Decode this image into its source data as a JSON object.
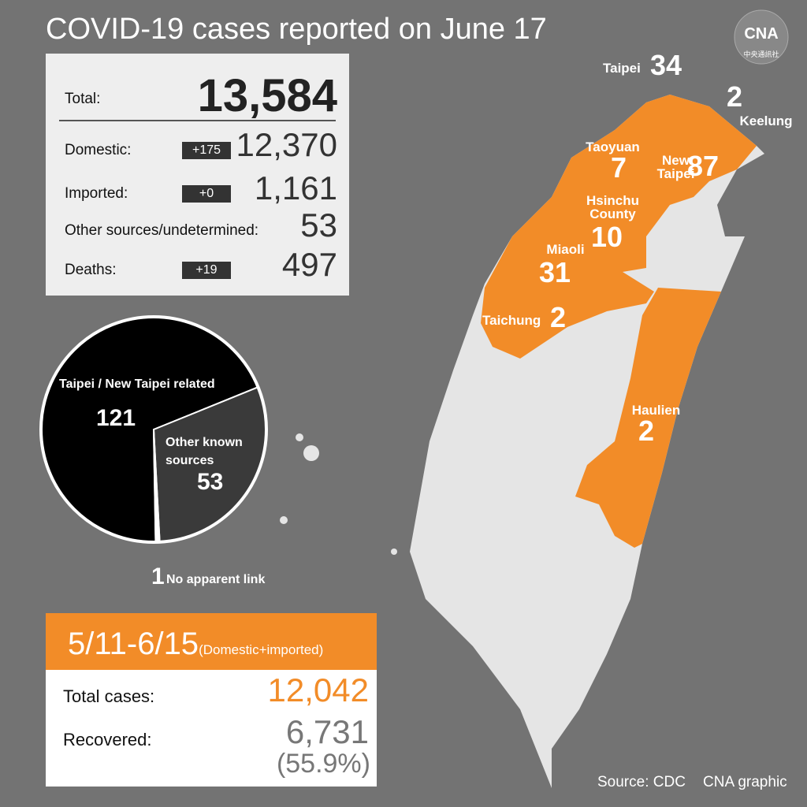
{
  "title": "COVID-19 cases reported on June 17",
  "logo": {
    "abbr": "CNA",
    "name": "中央通訊社"
  },
  "summary": {
    "rows": [
      {
        "label": "Total:",
        "value": "13,584"
      },
      {
        "label": "Domestic:",
        "change": "+175",
        "value": "12,370"
      },
      {
        "label": "Imported:",
        "change": "+0",
        "value": "1,161"
      },
      {
        "label": "Other sources/undetermined:",
        "value": "53"
      },
      {
        "label": "Deaths:",
        "change": "+19",
        "value": "497"
      }
    ]
  },
  "pie": {
    "slices": [
      {
        "label": "Taipei / New Taipei related",
        "value": 121,
        "color": "#000000"
      },
      {
        "label": "Other known sources",
        "value": 53,
        "color": "#3a3a3a"
      },
      {
        "label": "No apparent link",
        "value": 1,
        "color": "#ffffff"
      }
    ]
  },
  "period": {
    "range": "5/11-6/15",
    "note": "(Domestic+imported)",
    "rows": [
      {
        "label": "Total cases:",
        "value": "12,042"
      },
      {
        "label": "Recovered:",
        "value": "6,731",
        "share": "(55.9%)"
      }
    ]
  },
  "map": {
    "regions": [
      {
        "name": "Taipei",
        "value": 34
      },
      {
        "name": "Keelung",
        "value": 2
      },
      {
        "name": "Taoyuan",
        "value": 7
      },
      {
        "name": "New Taipei",
        "value": 87
      },
      {
        "name": "Hsinchu County",
        "value": 10
      },
      {
        "name": "Miaoli",
        "value": 31
      },
      {
        "name": "Taichung",
        "value": 2
      },
      {
        "name": "Haulien",
        "value": 2
      }
    ]
  },
  "footer": {
    "source": "Source: CDC",
    "credit": "CNA graphic"
  }
}
